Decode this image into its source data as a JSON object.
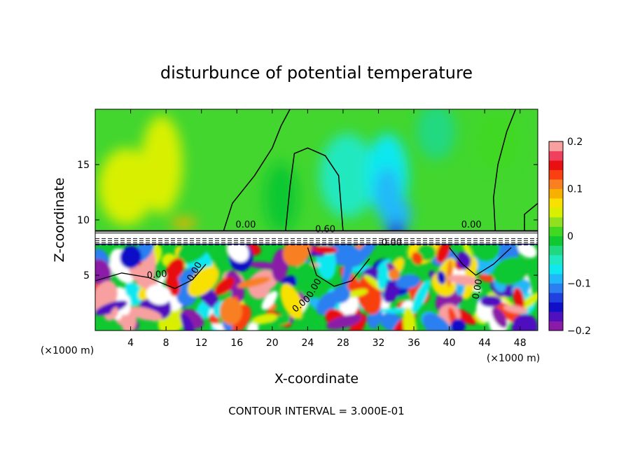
{
  "chart_data": {
    "type": "heatmap",
    "title": "disturbunce of potential temperature",
    "xlabel": "X-coordinate",
    "ylabel": "Z-coordinate",
    "x_unit": "(×1000 m)",
    "xlim": [
      0,
      50
    ],
    "ylim": [
      0,
      20
    ],
    "x_ticks": [
      4,
      8,
      12,
      16,
      20,
      24,
      28,
      32,
      36,
      40,
      44,
      48
    ],
    "y_ticks": [
      5,
      10,
      15
    ],
    "colorbar": {
      "range": [
        -0.2,
        0.2
      ],
      "tick_values": [
        0.2,
        0.1,
        0,
        -0.1,
        -0.2
      ],
      "tick_labels": [
        "0.2",
        "0.1",
        "0",
        "−0.1",
        "−0.2"
      ],
      "colors": [
        "#8a1aa8",
        "#5010c0",
        "#1010c8",
        "#2040e0",
        "#2a80f0",
        "#20b8f8",
        "#10e8f0",
        "#20e8c0",
        "#20d880",
        "#10c830",
        "#40d820",
        "#90e020",
        "#d8f000",
        "#f8e000",
        "#f8b000",
        "#f88020",
        "#f84010",
        "#e81010",
        "#f04060",
        "#f8a0a0"
      ]
    },
    "contour_interval_text": "CONTOUR INTERVAL = 3.000E-01",
    "contour_labels": [
      "0.00",
      "0.60",
      "0.00",
      "0.00",
      "0.00",
      "0.00",
      "0.00",
      "0.00",
      "0.00"
    ],
    "regions": {
      "upper_layer": {
        "z_range": [
          9,
          20
        ],
        "background_value": 0.0,
        "anomalies": [
          {
            "x": 7.5,
            "z": 15,
            "value": 0.05
          },
          {
            "x": 3.5,
            "z": 13,
            "value": 0.04
          },
          {
            "x": 28.5,
            "z": 14,
            "value": -0.05
          },
          {
            "x": 33,
            "z": 14,
            "value": -0.08
          },
          {
            "x": 34,
            "z": 10.5,
            "value": -0.1
          },
          {
            "x": 38.5,
            "z": 18,
            "value": -0.03
          },
          {
            "x": 45.5,
            "z": 17,
            "value": 0.02
          },
          {
            "x": 21,
            "z": 12,
            "value": -0.02
          },
          {
            "x": 10,
            "z": 9.7,
            "value": 0.09
          }
        ]
      },
      "transition_band": {
        "z_range": [
          7.8,
          9.0
        ],
        "value": "white (strong gradient)"
      },
      "lower_layer": {
        "z_range": [
          0,
          7.8
        ],
        "description": "turbulent mixed field spanning -0.2 to 0.2"
      }
    }
  }
}
